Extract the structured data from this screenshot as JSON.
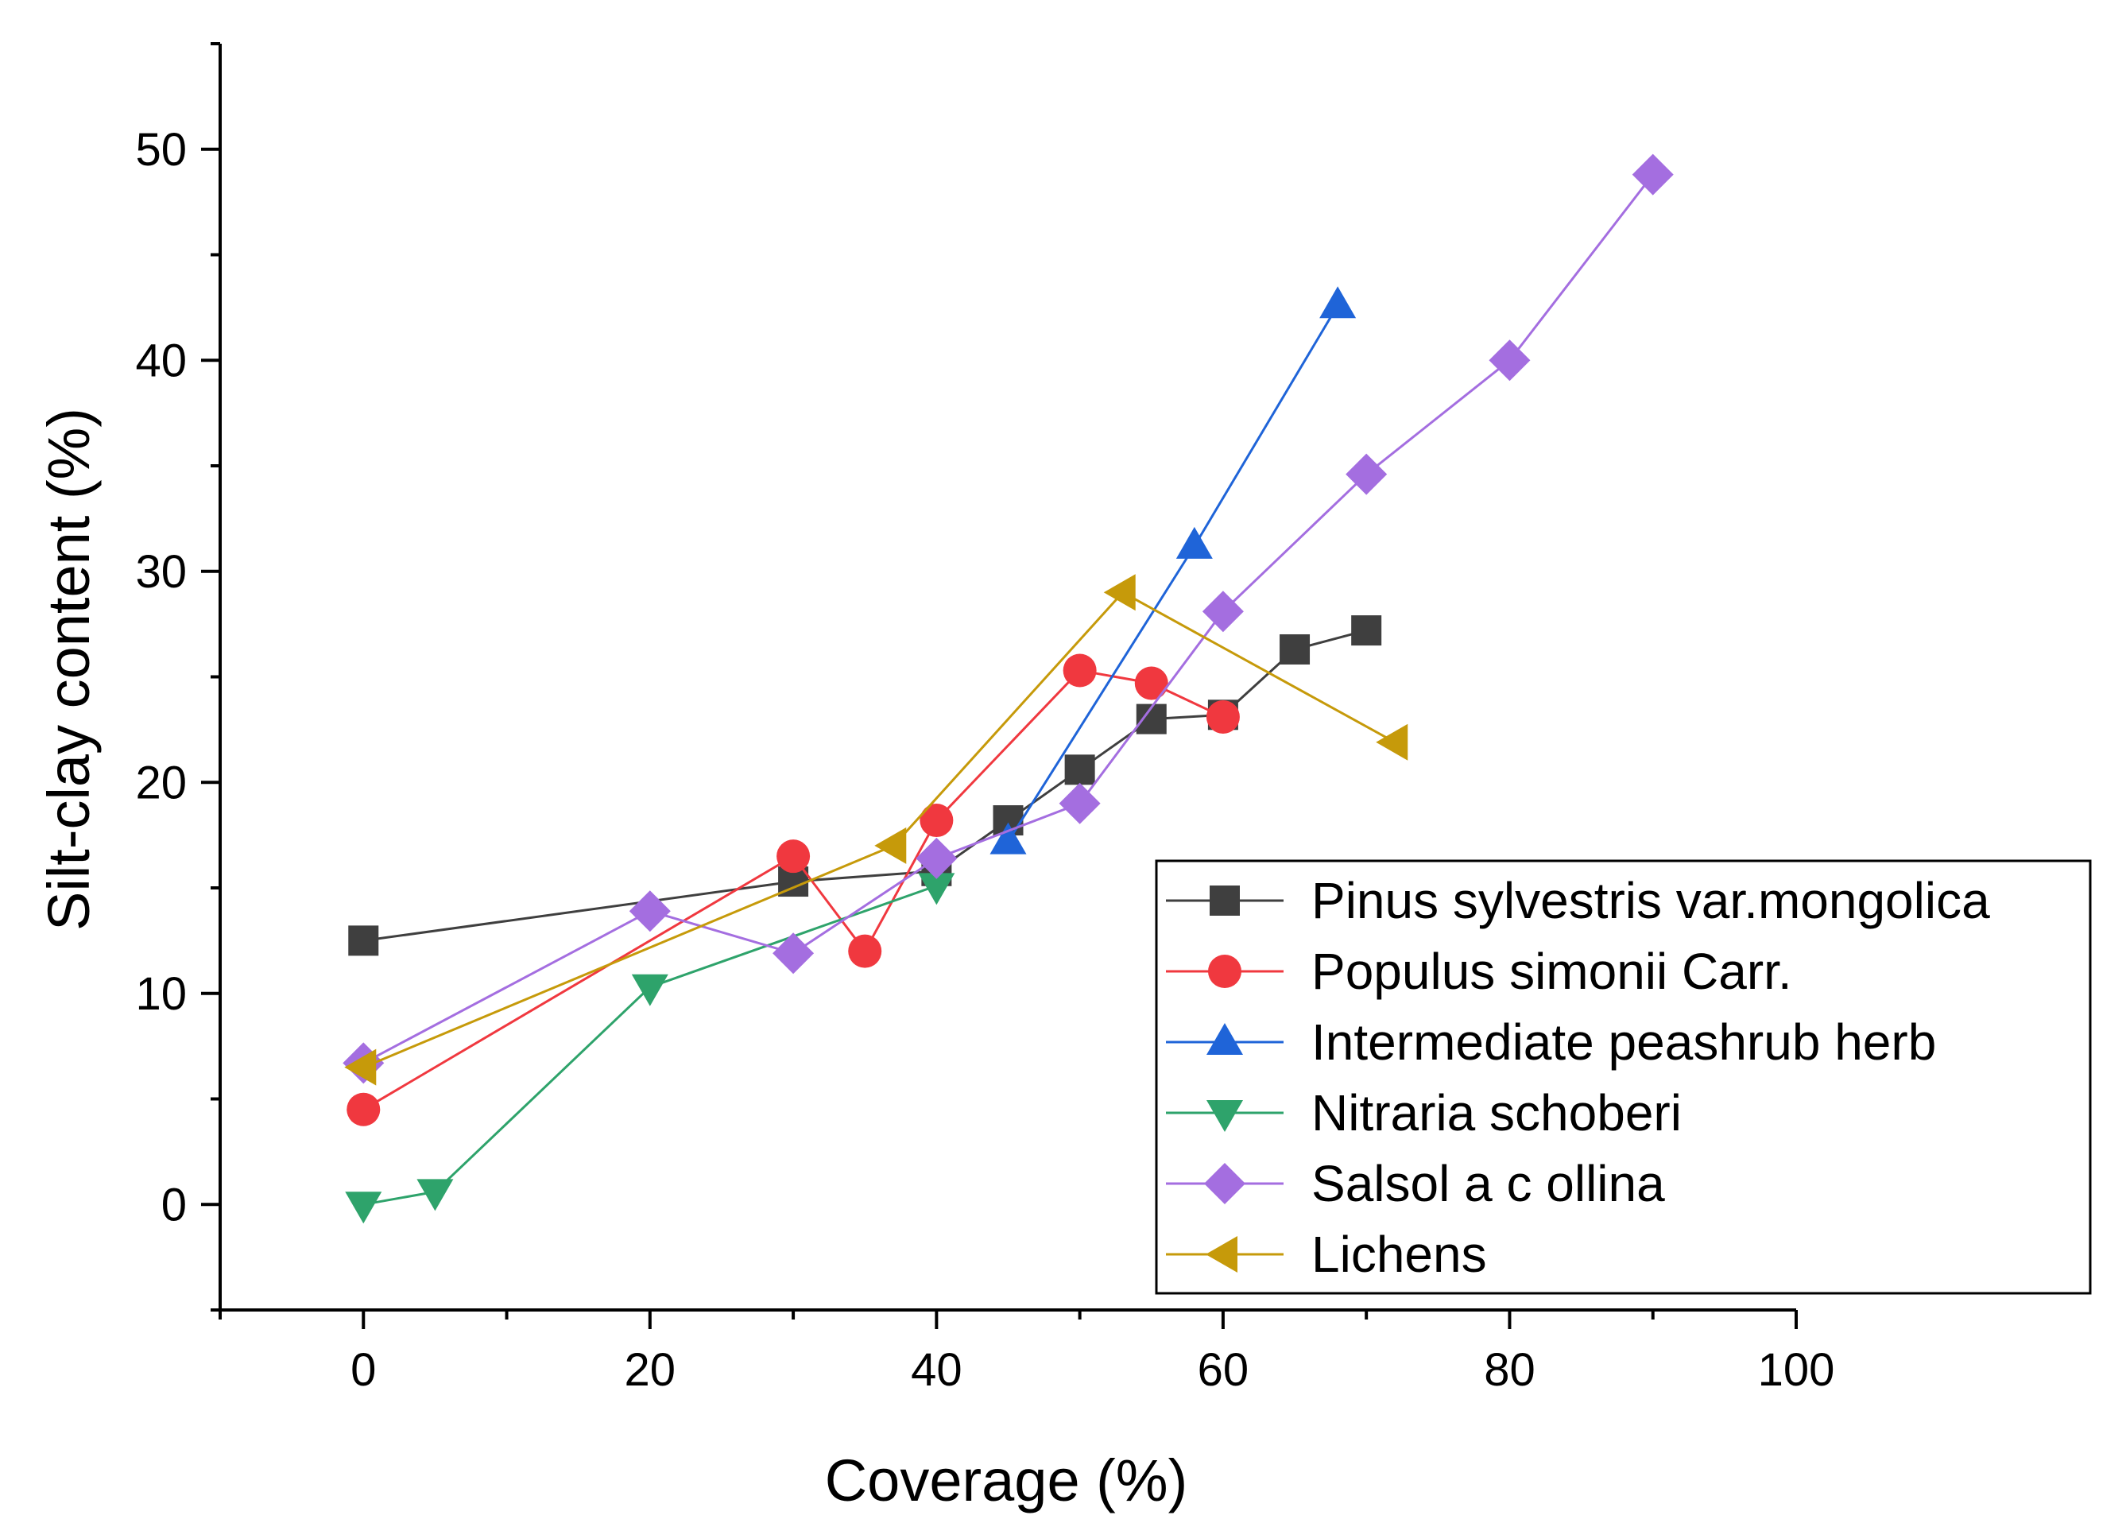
{
  "chart_data": {
    "type": "line",
    "title": "",
    "xlabel": "Coverage (%)",
    "ylabel": "Silt-clay content (%)",
    "xlim": [
      -10,
      100
    ],
    "ylim": [
      -5,
      55
    ],
    "xticks": [
      0,
      20,
      40,
      60,
      80,
      100
    ],
    "yticks": [
      0,
      10,
      20,
      30,
      40,
      50
    ],
    "grid": false,
    "legend_position": "bottom-right",
    "series": [
      {
        "name": "Pinus sylvestris var.mongolica",
        "color": "#3f3f3f",
        "marker": "square",
        "points": [
          [
            0,
            12.5
          ],
          [
            30,
            15.3
          ],
          [
            40,
            15.8
          ],
          [
            45,
            18.2
          ],
          [
            50,
            20.6
          ],
          [
            55,
            23.0
          ],
          [
            60,
            23.2
          ],
          [
            65,
            26.3
          ],
          [
            70,
            27.2
          ]
        ]
      },
      {
        "name": "Populus simonii Carr.",
        "color": "#f0383f",
        "marker": "circle",
        "points": [
          [
            0,
            4.5
          ],
          [
            30,
            16.5
          ],
          [
            35,
            12.0
          ],
          [
            40,
            18.2
          ],
          [
            50,
            25.3
          ],
          [
            55,
            24.7
          ],
          [
            60,
            23.1
          ]
        ]
      },
      {
        "name": "Intermediate peashrub herb",
        "color": "#1f64d8",
        "marker": "triangle-up",
        "points": [
          [
            45,
            17.2
          ],
          [
            58,
            31.2
          ],
          [
            68,
            42.6
          ]
        ]
      },
      {
        "name": "Nitraria schoberi",
        "color": "#2ea36b",
        "marker": "triangle-down",
        "points": [
          [
            0,
            0.0
          ],
          [
            5,
            0.6
          ],
          [
            20,
            10.3
          ],
          [
            40,
            15.1
          ]
        ]
      },
      {
        "name": "Salsol a c ollina",
        "color": "#a46ee0",
        "marker": "diamond",
        "points": [
          [
            0,
            6.7
          ],
          [
            20,
            13.9
          ],
          [
            30,
            11.9
          ],
          [
            40,
            16.4
          ],
          [
            50,
            19.0
          ],
          [
            60,
            28.1
          ],
          [
            70,
            34.6
          ],
          [
            80,
            40.0
          ],
          [
            90,
            48.8
          ]
        ]
      },
      {
        "name": "Lichens",
        "color": "#c69a0a",
        "marker": "triangle-left",
        "points": [
          [
            0,
            6.5
          ],
          [
            37,
            17.0
          ],
          [
            53,
            29.0
          ],
          [
            72,
            21.9
          ]
        ]
      }
    ]
  }
}
